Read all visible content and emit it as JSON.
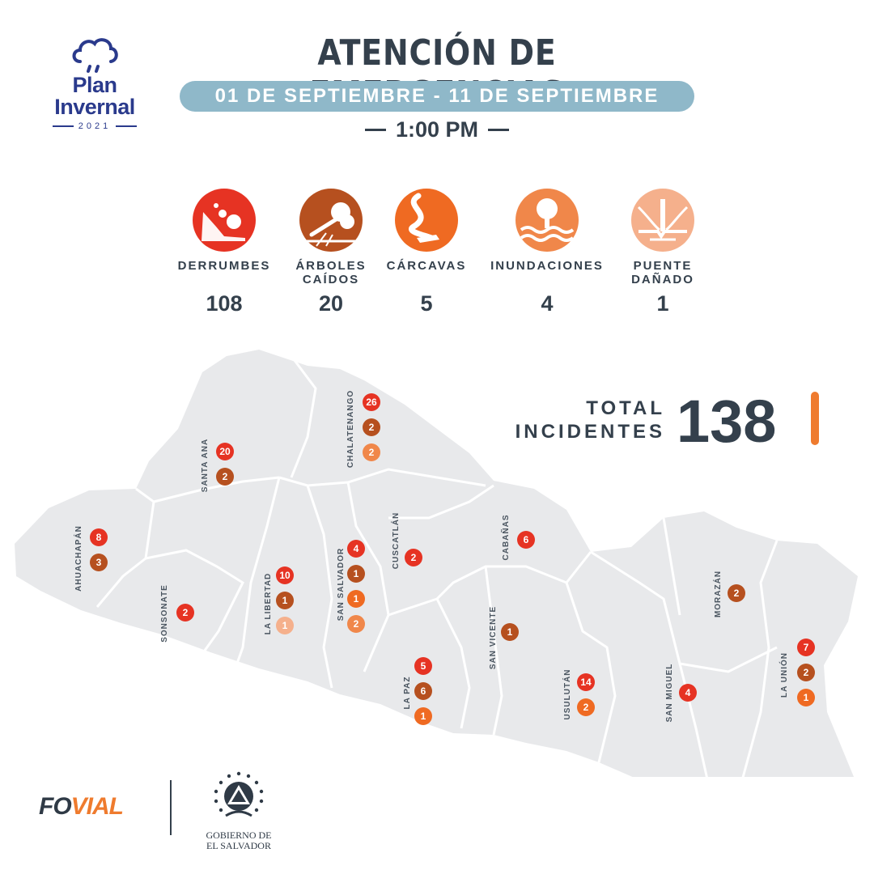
{
  "logo": {
    "line1": "Plan",
    "line2": "Invernal",
    "year": "2021"
  },
  "header": {
    "title": "ATENCIÓN DE EMERGENCIAS",
    "date_range": "01 DE SEPTIEMBRE - 11 DE SEPTIEMBRE",
    "time": "1:00 PM"
  },
  "categories": [
    {
      "label_line1": "DERRUMBES",
      "label_line2": "",
      "count": "108",
      "color": "#e63323",
      "icon": "landslide-icon"
    },
    {
      "label_line1": "ÁRBOLES",
      "label_line2": "CAÍDOS",
      "count": "20",
      "color": "#b6501f",
      "icon": "fallen-tree-icon"
    },
    {
      "label_line1": "CÁRCAVAS",
      "label_line2": "",
      "count": "5",
      "color": "#ef6a22",
      "icon": "gully-icon"
    },
    {
      "label_line1": "INUNDACIONES",
      "label_line2": "",
      "count": "4",
      "color": "#f0874a",
      "icon": "flood-icon"
    },
    {
      "label_line1": "PUENTE",
      "label_line2": "DAÑADO",
      "count": "1",
      "color": "#f5b08c",
      "icon": "damaged-bridge-icon"
    }
  ],
  "total": {
    "label_line1": "TOTAL",
    "label_line2": "INCIDENTES",
    "value": "138"
  },
  "departments": [
    {
      "name": "AHUACHAPÁN",
      "markers": [
        {
          "value": "8",
          "color": "#e63323"
        },
        {
          "value": "3",
          "color": "#b6501f"
        }
      ]
    },
    {
      "name": "SANTA ANA",
      "markers": [
        {
          "value": "20",
          "color": "#e63323"
        },
        {
          "value": "2",
          "color": "#b6501f"
        }
      ]
    },
    {
      "name": "CHALATENANGO",
      "markers": [
        {
          "value": "26",
          "color": "#e63323"
        },
        {
          "value": "2",
          "color": "#b6501f"
        },
        {
          "value": "2",
          "color": "#f0874a"
        }
      ]
    },
    {
      "name": "SONSONATE",
      "markers": [
        {
          "value": "2",
          "color": "#e63323"
        }
      ]
    },
    {
      "name": "LA LIBERTAD",
      "markers": [
        {
          "value": "10",
          "color": "#e63323"
        },
        {
          "value": "1",
          "color": "#b6501f"
        },
        {
          "value": "1",
          "color": "#f5b08c"
        }
      ]
    },
    {
      "name": "SAN SALVADOR",
      "markers": [
        {
          "value": "4",
          "color": "#e63323"
        },
        {
          "value": "1",
          "color": "#b6501f"
        },
        {
          "value": "1",
          "color": "#ef6a22"
        },
        {
          "value": "2",
          "color": "#f0874a"
        }
      ]
    },
    {
      "name": "CUSCATLÁN",
      "markers": [
        {
          "value": "2",
          "color": "#e63323"
        }
      ]
    },
    {
      "name": "CABAÑAS",
      "markers": [
        {
          "value": "6",
          "color": "#e63323"
        }
      ]
    },
    {
      "name": "LA PAZ",
      "markers": [
        {
          "value": "5",
          "color": "#e63323"
        },
        {
          "value": "6",
          "color": "#b6501f"
        },
        {
          "value": "1",
          "color": "#ef6a22"
        }
      ]
    },
    {
      "name": "SAN VICENTE",
      "markers": [
        {
          "value": "1",
          "color": "#b6501f"
        }
      ]
    },
    {
      "name": "USULUTÁN",
      "markers": [
        {
          "value": "14",
          "color": "#e63323"
        },
        {
          "value": "2",
          "color": "#ef6a22"
        }
      ]
    },
    {
      "name": "SAN MIGUEL",
      "markers": [
        {
          "value": "4",
          "color": "#e63323"
        }
      ]
    },
    {
      "name": "MORAZÁN",
      "markers": [
        {
          "value": "2",
          "color": "#b6501f"
        }
      ]
    },
    {
      "name": "LA UNIÓN",
      "markers": [
        {
          "value": "7",
          "color": "#e63323"
        },
        {
          "value": "2",
          "color": "#b6501f"
        },
        {
          "value": "1",
          "color": "#ef6a22"
        }
      ]
    }
  ],
  "footer": {
    "fovial_a": "FO",
    "fovial_b": "VIAL",
    "gov_line1": "GOBIERNO DE",
    "gov_line2": "EL SALVADOR"
  }
}
